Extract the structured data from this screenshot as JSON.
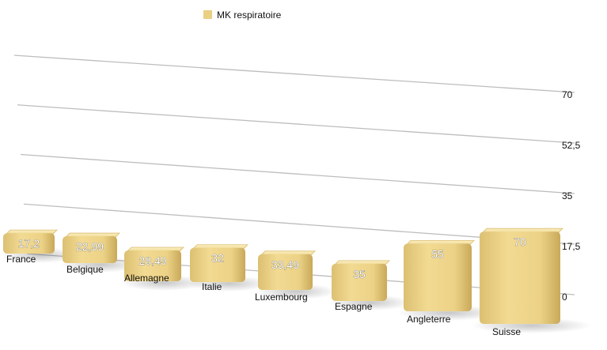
{
  "chart_data": {
    "type": "bar",
    "categories": [
      "France",
      "Belgique",
      "Allemagne",
      "Italie",
      "Luxembourg",
      "Espagne",
      "Angleterre",
      "Suisse"
    ],
    "series": [
      {
        "name": "MK respiratoire",
        "values": [
          17.2,
          22.99,
          28.49,
          32,
          33.49,
          35,
          55,
          70
        ]
      }
    ],
    "data_labels": [
      "17,2",
      "22,99",
      "28,49",
      "32",
      "33,49",
      "35",
      "55",
      "70"
    ],
    "yticks": [
      "0",
      "17,5",
      "35",
      "52,5",
      "70"
    ],
    "ylim": [
      0,
      70
    ],
    "ytick_values": [
      0,
      17.5,
      35,
      52.5,
      70
    ],
    "legend": {
      "position": "top",
      "entries": [
        "MK respiratoire"
      ]
    },
    "grid": true,
    "style": "3d-perspective",
    "colors": {
      "bar_light": "#f5df9a",
      "bar_mid": "#ead083",
      "bar_dark": "#c9a95a",
      "bar_top": "#f9e9b3",
      "grid": "#bdbdbd"
    }
  }
}
